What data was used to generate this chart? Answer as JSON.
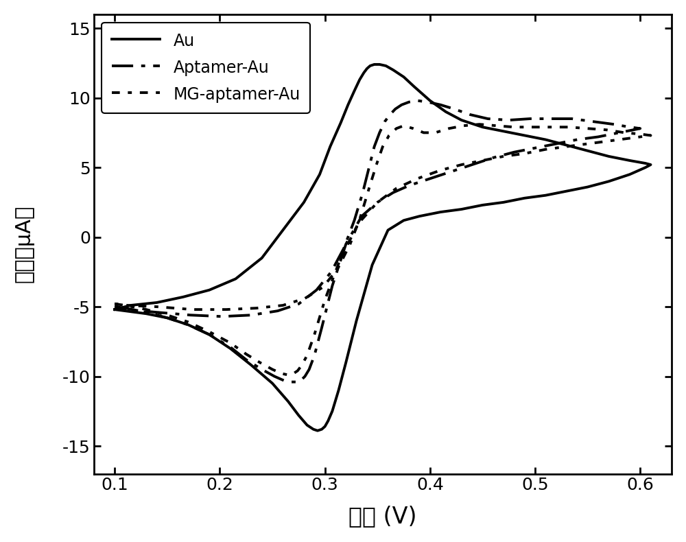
{
  "title": "",
  "xlabel": "电位 (V)",
  "ylabel": "电流\n（μA）",
  "xlim": [
    0.08,
    0.63
  ],
  "ylim": [
    -17,
    16
  ],
  "yticks": [
    -15,
    -10,
    -5,
    0,
    5,
    10,
    15
  ],
  "xticks": [
    0.1,
    0.2,
    0.3,
    0.4,
    0.5,
    0.6
  ],
  "background_color": "#ffffff",
  "line_color": "#000000",
  "legend_labels": [
    "Au",
    "Aptamer-Au",
    "MG-aptamer-Au"
  ],
  "Au_x": [
    0.1,
    0.11,
    0.13,
    0.15,
    0.17,
    0.19,
    0.21,
    0.23,
    0.25,
    0.265,
    0.275,
    0.283,
    0.289,
    0.293,
    0.297,
    0.3,
    0.303,
    0.307,
    0.313,
    0.32,
    0.33,
    0.345,
    0.36,
    0.375,
    0.39,
    0.41,
    0.43,
    0.45,
    0.47,
    0.49,
    0.51,
    0.53,
    0.55,
    0.57,
    0.59,
    0.605,
    0.61,
    0.61,
    0.605,
    0.59,
    0.57,
    0.55,
    0.53,
    0.51,
    0.49,
    0.47,
    0.45,
    0.43,
    0.415,
    0.4,
    0.385,
    0.375,
    0.365,
    0.358,
    0.352,
    0.347,
    0.343,
    0.34,
    0.337,
    0.333,
    0.328,
    0.322,
    0.315,
    0.305,
    0.295,
    0.28,
    0.26,
    0.24,
    0.215,
    0.19,
    0.165,
    0.14,
    0.115,
    0.1
  ],
  "Au_y": [
    -5.2,
    -5.3,
    -5.5,
    -5.8,
    -6.3,
    -7.0,
    -8.0,
    -9.2,
    -10.5,
    -11.8,
    -12.8,
    -13.5,
    -13.8,
    -13.9,
    -13.8,
    -13.6,
    -13.2,
    -12.5,
    -11.0,
    -9.0,
    -6.0,
    -2.0,
    0.5,
    1.2,
    1.5,
    1.8,
    2.0,
    2.3,
    2.5,
    2.8,
    3.0,
    3.3,
    3.6,
    4.0,
    4.5,
    5.0,
    5.2,
    5.2,
    5.3,
    5.5,
    5.8,
    6.2,
    6.6,
    7.0,
    7.3,
    7.6,
    7.9,
    8.4,
    9.0,
    9.8,
    10.8,
    11.5,
    12.0,
    12.3,
    12.4,
    12.4,
    12.3,
    12.1,
    11.8,
    11.3,
    10.5,
    9.5,
    8.2,
    6.5,
    4.5,
    2.5,
    0.5,
    -1.5,
    -3.0,
    -3.8,
    -4.3,
    -4.7,
    -4.9,
    -5.2
  ],
  "Aptamer_x": [
    0.1,
    0.11,
    0.13,
    0.15,
    0.17,
    0.19,
    0.21,
    0.225,
    0.24,
    0.252,
    0.261,
    0.268,
    0.273,
    0.277,
    0.281,
    0.285,
    0.29,
    0.297,
    0.307,
    0.32,
    0.335,
    0.35,
    0.365,
    0.38,
    0.4,
    0.42,
    0.44,
    0.46,
    0.48,
    0.5,
    0.52,
    0.54,
    0.56,
    0.58,
    0.6,
    0.6,
    0.59,
    0.575,
    0.555,
    0.535,
    0.515,
    0.495,
    0.475,
    0.455,
    0.438,
    0.423,
    0.41,
    0.398,
    0.388,
    0.38,
    0.373,
    0.367,
    0.362,
    0.357,
    0.352,
    0.347,
    0.342,
    0.336,
    0.328,
    0.318,
    0.306,
    0.292,
    0.275,
    0.255,
    0.23,
    0.202,
    0.172,
    0.14,
    0.112,
    0.1
  ],
  "Aptamer_y": [
    -5.0,
    -5.1,
    -5.4,
    -5.8,
    -6.3,
    -7.0,
    -7.9,
    -8.8,
    -9.5,
    -10.0,
    -10.3,
    -10.4,
    -10.4,
    -10.3,
    -10.0,
    -9.5,
    -8.5,
    -6.5,
    -3.5,
    -0.5,
    1.5,
    2.5,
    3.2,
    3.7,
    4.2,
    4.7,
    5.2,
    5.7,
    6.1,
    6.4,
    6.7,
    7.0,
    7.2,
    7.5,
    7.8,
    7.8,
    7.9,
    8.1,
    8.3,
    8.5,
    8.5,
    8.5,
    8.4,
    8.5,
    8.8,
    9.2,
    9.5,
    9.7,
    9.8,
    9.7,
    9.5,
    9.2,
    8.8,
    8.3,
    7.5,
    6.5,
    5.0,
    3.2,
    1.2,
    -0.8,
    -2.5,
    -3.8,
    -4.8,
    -5.3,
    -5.6,
    -5.7,
    -5.6,
    -5.4,
    -5.2,
    -5.0
  ],
  "MG_x": [
    0.1,
    0.11,
    0.13,
    0.15,
    0.17,
    0.19,
    0.21,
    0.225,
    0.238,
    0.25,
    0.259,
    0.265,
    0.27,
    0.274,
    0.278,
    0.283,
    0.29,
    0.3,
    0.315,
    0.332,
    0.35,
    0.368,
    0.388,
    0.41,
    0.43,
    0.45,
    0.47,
    0.49,
    0.51,
    0.53,
    0.55,
    0.57,
    0.59,
    0.61,
    0.61,
    0.6,
    0.585,
    0.568,
    0.55,
    0.532,
    0.515,
    0.498,
    0.48,
    0.463,
    0.447,
    0.432,
    0.418,
    0.405,
    0.394,
    0.384,
    0.375,
    0.368,
    0.361,
    0.355,
    0.349,
    0.342,
    0.334,
    0.324,
    0.312,
    0.298,
    0.281,
    0.26,
    0.235,
    0.206,
    0.174,
    0.14,
    0.112,
    0.1
  ],
  "MG_y": [
    -4.8,
    -4.9,
    -5.2,
    -5.6,
    -6.1,
    -6.8,
    -7.6,
    -8.4,
    -9.0,
    -9.5,
    -9.8,
    -9.9,
    -9.8,
    -9.6,
    -9.2,
    -8.5,
    -7.0,
    -4.5,
    -1.5,
    1.0,
    2.5,
    3.5,
    4.2,
    4.8,
    5.2,
    5.5,
    5.8,
    6.0,
    6.3,
    6.5,
    6.7,
    6.9,
    7.1,
    7.3,
    7.3,
    7.4,
    7.5,
    7.7,
    7.8,
    7.9,
    7.9,
    7.9,
    7.9,
    8.0,
    8.1,
    8.0,
    7.8,
    7.5,
    7.5,
    7.8,
    8.0,
    7.8,
    7.3,
    6.5,
    5.2,
    3.5,
    1.5,
    -0.5,
    -2.3,
    -3.6,
    -4.4,
    -4.9,
    -5.1,
    -5.2,
    -5.2,
    -5.0,
    -4.9,
    -4.8
  ]
}
